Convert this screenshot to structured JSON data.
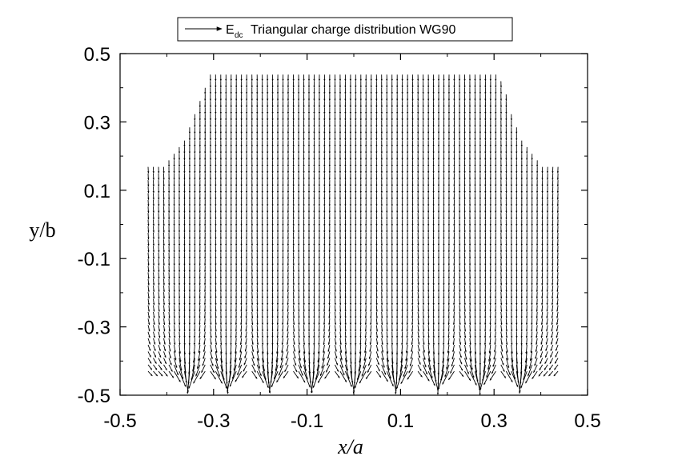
{
  "chart_data": {
    "type": "vector-field",
    "title": "",
    "xlabel": "x/a",
    "ylabel": "y/b",
    "xlim": [
      -0.5,
      0.5
    ],
    "ylim": [
      -0.5,
      0.5
    ],
    "xticks": [
      -0.5,
      -0.3,
      -0.1,
      0.1,
      0.3,
      0.5
    ],
    "yticks": [
      -0.5,
      -0.3,
      -0.1,
      0.1,
      0.3,
      0.5
    ],
    "xtick_labels": [
      "-0.5",
      "-0.3",
      "-0.1",
      "0.1",
      "0.3",
      "0.5"
    ],
    "ytick_labels": [
      "-0.5",
      "-0.3",
      "-0.1",
      "0.1",
      "0.3",
      "0.5"
    ],
    "grid": false,
    "legend": {
      "position": "top-center",
      "symbol": "arrow",
      "base": "E",
      "subscript": "dc",
      "label": "Triangular charge distribution WG90"
    },
    "field": {
      "x_range": [
        -0.44,
        0.44
      ],
      "y_range": [
        -0.43,
        0.44
      ],
      "grid_step_x": 0.0111,
      "grid_step_y": 0.0193,
      "boundary": [
        [
          -0.44,
          -0.43
        ],
        [
          0.44,
          -0.43
        ],
        [
          0.44,
          0.18
        ],
        [
          0.4,
          0.18
        ],
        [
          0.36,
          0.25
        ],
        [
          0.33,
          0.37
        ],
        [
          0.31,
          0.44
        ],
        [
          -0.31,
          0.44
        ],
        [
          -0.33,
          0.37
        ],
        [
          -0.36,
          0.25
        ],
        [
          -0.4,
          0.18
        ],
        [
          -0.44,
          0.18
        ]
      ],
      "sources_x": [
        -0.355,
        -0.27,
        -0.18,
        -0.09,
        0.0,
        0.09,
        0.18,
        0.27,
        0.355
      ],
      "direction": "downward",
      "strongest_near": [
        0.0,
        -0.47
      ]
    }
  }
}
